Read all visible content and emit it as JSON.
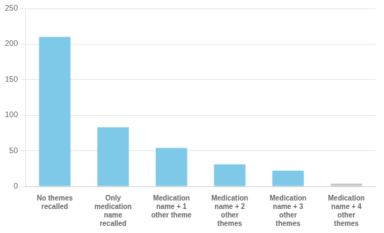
{
  "chart_data": {
    "type": "bar",
    "categories": [
      "No themes\nrecalled",
      "Only\nmedication\nname\nrecalled",
      "Medication\nname + 1\nother theme",
      "Medication\nname + 2\nother\nthemes",
      "Medication\nname + 3\nother\nthemes",
      "Medication\nname + 4\nother\nthemes"
    ],
    "values": [
      210,
      83,
      54,
      31,
      22,
      4
    ],
    "colors": [
      "#7ec8e8",
      "#7ec8e8",
      "#7ec8e8",
      "#7ec8e8",
      "#7ec8e8",
      "#c8c8c8"
    ],
    "ylim": [
      0,
      250
    ],
    "yticks": [
      0,
      50,
      100,
      150,
      200,
      250
    ],
    "grid": true
  }
}
